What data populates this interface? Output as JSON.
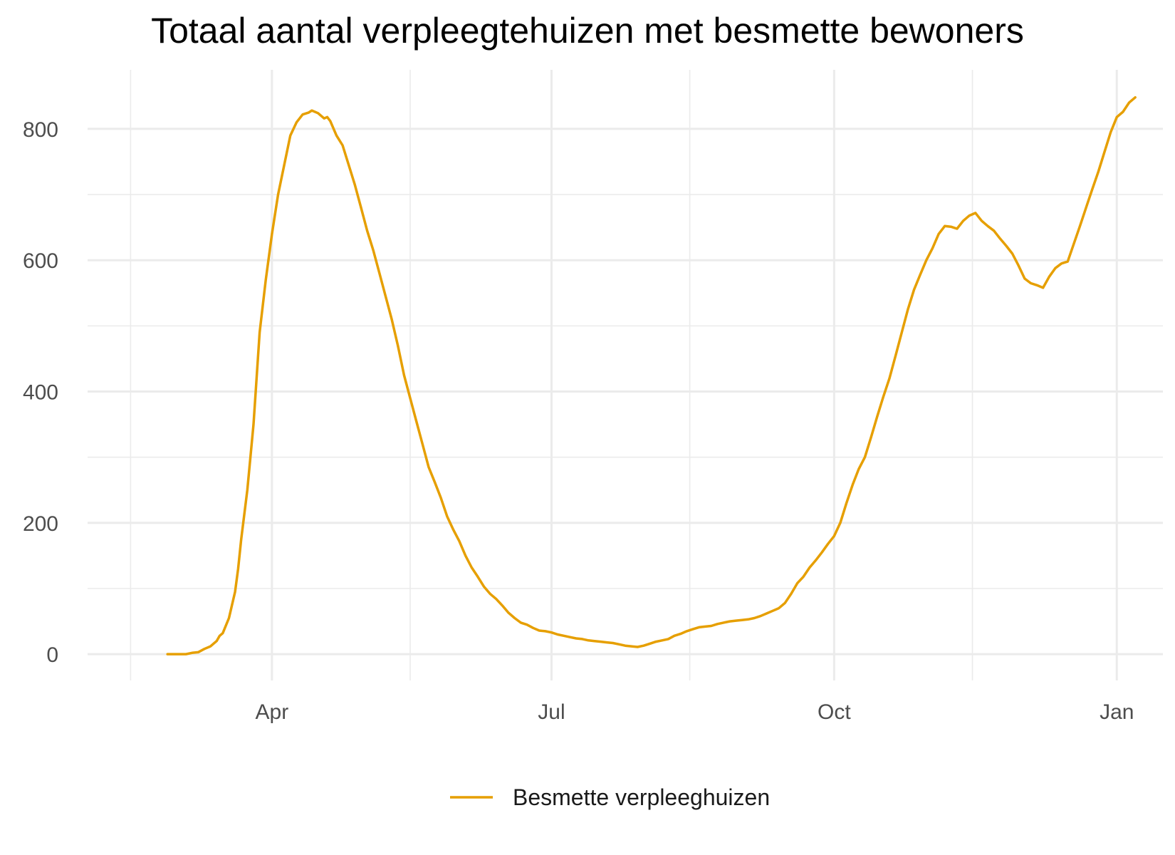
{
  "chart_data": {
    "type": "line",
    "title": "Totaal aantal verpleegtehuizen met besmette bewoners",
    "xlabel": "",
    "ylabel": "",
    "x_range": [
      "2020-02-01",
      "2021-01-16"
    ],
    "ylim": [
      -40,
      890
    ],
    "y_ticks": [
      0,
      200,
      400,
      600,
      800
    ],
    "y_minor_ticks": [
      100,
      300,
      500,
      700
    ],
    "x_ticks": [
      {
        "date": "2020-04-01",
        "label": "Apr"
      },
      {
        "date": "2020-07-01",
        "label": "Jul"
      },
      {
        "date": "2020-10-01",
        "label": "Oct"
      },
      {
        "date": "2021-01-01",
        "label": "Jan"
      }
    ],
    "x_minor_ticks": [
      "2020-02-15",
      "2020-05-16",
      "2020-08-15",
      "2020-11-15"
    ],
    "grid": true,
    "legend_position": "bottom",
    "colors": {
      "series": "#E69F00",
      "grid": "#ebebeb",
      "tick_text": "#4d4d4d"
    },
    "series": [
      {
        "name": "Besmette verpleeghuizen",
        "points": [
          [
            "2020-02-27",
            0
          ],
          [
            "2020-03-01",
            0
          ],
          [
            "2020-03-04",
            0
          ],
          [
            "2020-03-06",
            2
          ],
          [
            "2020-03-08",
            3
          ],
          [
            "2020-03-10",
            8
          ],
          [
            "2020-03-12",
            12
          ],
          [
            "2020-03-14",
            20
          ],
          [
            "2020-03-15",
            28
          ],
          [
            "2020-03-16",
            32
          ],
          [
            "2020-03-18",
            55
          ],
          [
            "2020-03-20",
            95
          ],
          [
            "2020-03-21",
            130
          ],
          [
            "2020-03-22",
            175
          ],
          [
            "2020-03-24",
            250
          ],
          [
            "2020-03-26",
            350
          ],
          [
            "2020-03-28",
            490
          ],
          [
            "2020-03-30",
            570
          ],
          [
            "2020-04-01",
            640
          ],
          [
            "2020-04-03",
            700
          ],
          [
            "2020-04-05",
            745
          ],
          [
            "2020-04-07",
            790
          ],
          [
            "2020-04-09",
            810
          ],
          [
            "2020-04-11",
            822
          ],
          [
            "2020-04-13",
            825
          ],
          [
            "2020-04-14",
            828
          ],
          [
            "2020-04-16",
            824
          ],
          [
            "2020-04-18",
            816
          ],
          [
            "2020-04-19",
            818
          ],
          [
            "2020-04-20",
            812
          ],
          [
            "2020-04-22",
            790
          ],
          [
            "2020-04-24",
            775
          ],
          [
            "2020-04-26",
            745
          ],
          [
            "2020-04-28",
            715
          ],
          [
            "2020-04-30",
            680
          ],
          [
            "2020-05-02",
            645
          ],
          [
            "2020-05-04",
            615
          ],
          [
            "2020-05-06",
            580
          ],
          [
            "2020-05-08",
            545
          ],
          [
            "2020-05-10",
            510
          ],
          [
            "2020-05-12",
            470
          ],
          [
            "2020-05-14",
            425
          ],
          [
            "2020-05-16",
            390
          ],
          [
            "2020-05-18",
            355
          ],
          [
            "2020-05-20",
            320
          ],
          [
            "2020-05-22",
            285
          ],
          [
            "2020-05-24",
            262
          ],
          [
            "2020-05-26",
            238
          ],
          [
            "2020-05-28",
            210
          ],
          [
            "2020-05-30",
            190
          ],
          [
            "2020-06-01",
            172
          ],
          [
            "2020-06-03",
            150
          ],
          [
            "2020-06-05",
            132
          ],
          [
            "2020-06-07",
            118
          ],
          [
            "2020-06-09",
            103
          ],
          [
            "2020-06-11",
            92
          ],
          [
            "2020-06-13",
            84
          ],
          [
            "2020-06-15",
            74
          ],
          [
            "2020-06-17",
            63
          ],
          [
            "2020-06-19",
            55
          ],
          [
            "2020-06-21",
            48
          ],
          [
            "2020-06-23",
            45
          ],
          [
            "2020-06-25",
            40
          ],
          [
            "2020-06-27",
            36
          ],
          [
            "2020-06-29",
            35
          ],
          [
            "2020-07-01",
            33
          ],
          [
            "2020-07-03",
            30
          ],
          [
            "2020-07-05",
            28
          ],
          [
            "2020-07-07",
            26
          ],
          [
            "2020-07-09",
            24
          ],
          [
            "2020-07-11",
            23
          ],
          [
            "2020-07-13",
            21
          ],
          [
            "2020-07-15",
            20
          ],
          [
            "2020-07-17",
            19
          ],
          [
            "2020-07-19",
            18
          ],
          [
            "2020-07-21",
            17
          ],
          [
            "2020-07-23",
            15
          ],
          [
            "2020-07-25",
            13
          ],
          [
            "2020-07-27",
            12
          ],
          [
            "2020-07-29",
            11
          ],
          [
            "2020-07-31",
            13
          ],
          [
            "2020-08-02",
            16
          ],
          [
            "2020-08-04",
            19
          ],
          [
            "2020-08-06",
            21
          ],
          [
            "2020-08-08",
            23
          ],
          [
            "2020-08-10",
            28
          ],
          [
            "2020-08-12",
            31
          ],
          [
            "2020-08-14",
            35
          ],
          [
            "2020-08-16",
            38
          ],
          [
            "2020-08-18",
            41
          ],
          [
            "2020-08-20",
            42
          ],
          [
            "2020-08-22",
            43
          ],
          [
            "2020-08-24",
            46
          ],
          [
            "2020-08-26",
            48
          ],
          [
            "2020-08-28",
            50
          ],
          [
            "2020-08-30",
            51
          ],
          [
            "2020-09-01",
            52
          ],
          [
            "2020-09-03",
            53
          ],
          [
            "2020-09-05",
            55
          ],
          [
            "2020-09-07",
            58
          ],
          [
            "2020-09-09",
            62
          ],
          [
            "2020-09-11",
            66
          ],
          [
            "2020-09-13",
            70
          ],
          [
            "2020-09-15",
            78
          ],
          [
            "2020-09-17",
            92
          ],
          [
            "2020-09-19",
            108
          ],
          [
            "2020-09-21",
            118
          ],
          [
            "2020-09-23",
            132
          ],
          [
            "2020-09-25",
            143
          ],
          [
            "2020-09-27",
            155
          ],
          [
            "2020-09-29",
            168
          ],
          [
            "2020-10-01",
            180
          ],
          [
            "2020-10-03",
            200
          ],
          [
            "2020-10-05",
            230
          ],
          [
            "2020-10-07",
            258
          ],
          [
            "2020-10-09",
            282
          ],
          [
            "2020-10-11",
            300
          ],
          [
            "2020-10-13",
            330
          ],
          [
            "2020-10-15",
            362
          ],
          [
            "2020-10-17",
            392
          ],
          [
            "2020-10-19",
            420
          ],
          [
            "2020-10-21",
            455
          ],
          [
            "2020-10-23",
            490
          ],
          [
            "2020-10-25",
            525
          ],
          [
            "2020-10-27",
            555
          ],
          [
            "2020-10-29",
            578
          ],
          [
            "2020-10-31",
            600
          ],
          [
            "2020-11-02",
            618
          ],
          [
            "2020-11-04",
            640
          ],
          [
            "2020-11-06",
            652
          ],
          [
            "2020-11-08",
            651
          ],
          [
            "2020-11-10",
            648
          ],
          [
            "2020-11-12",
            660
          ],
          [
            "2020-11-14",
            668
          ],
          [
            "2020-11-16",
            672
          ],
          [
            "2020-11-18",
            660
          ],
          [
            "2020-11-20",
            652
          ],
          [
            "2020-11-22",
            645
          ],
          [
            "2020-11-24",
            633
          ],
          [
            "2020-11-26",
            622
          ],
          [
            "2020-11-28",
            610
          ],
          [
            "2020-11-30",
            592
          ],
          [
            "2020-12-02",
            572
          ],
          [
            "2020-12-04",
            565
          ],
          [
            "2020-12-06",
            562
          ],
          [
            "2020-12-08",
            558
          ],
          [
            "2020-12-10",
            575
          ],
          [
            "2020-12-12",
            588
          ],
          [
            "2020-12-14",
            595
          ],
          [
            "2020-12-16",
            598
          ],
          [
            "2020-12-18",
            625
          ],
          [
            "2020-12-20",
            652
          ],
          [
            "2020-12-22",
            680
          ],
          [
            "2020-12-24",
            708
          ],
          [
            "2020-12-26",
            735
          ],
          [
            "2020-12-28",
            765
          ],
          [
            "2020-12-30",
            795
          ],
          [
            "2021-01-01",
            818
          ],
          [
            "2021-01-03",
            826
          ],
          [
            "2021-01-05",
            840
          ],
          [
            "2021-01-07",
            848
          ]
        ]
      }
    ]
  }
}
